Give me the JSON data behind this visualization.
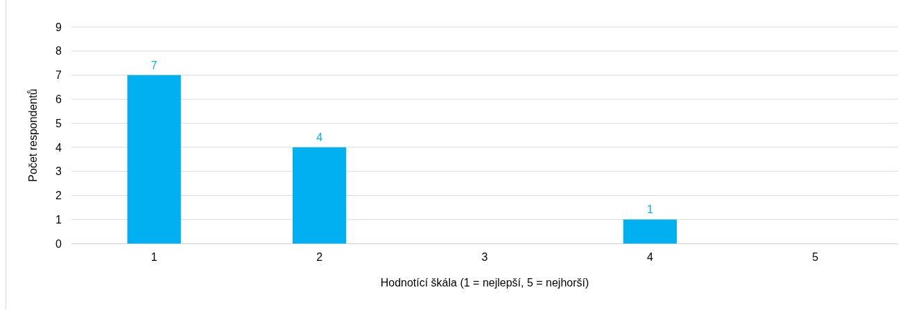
{
  "chart_data": {
    "type": "bar",
    "xlabel": "Hodnotící škála (1 = nejlepší, 5 = nejhorší)",
    "ylabel": "Počet respondentů",
    "categories": [
      "1",
      "2",
      "3",
      "4",
      "5"
    ],
    "values": [
      7,
      4,
      0,
      1,
      0
    ],
    "value_labels": [
      "7",
      "4",
      null,
      "1",
      null
    ],
    "color": "#00b0f0",
    "ylim": [
      0,
      9
    ],
    "yticks": [
      0,
      1,
      2,
      3,
      4,
      5,
      6,
      7,
      8,
      9
    ],
    "grid": "y"
  }
}
